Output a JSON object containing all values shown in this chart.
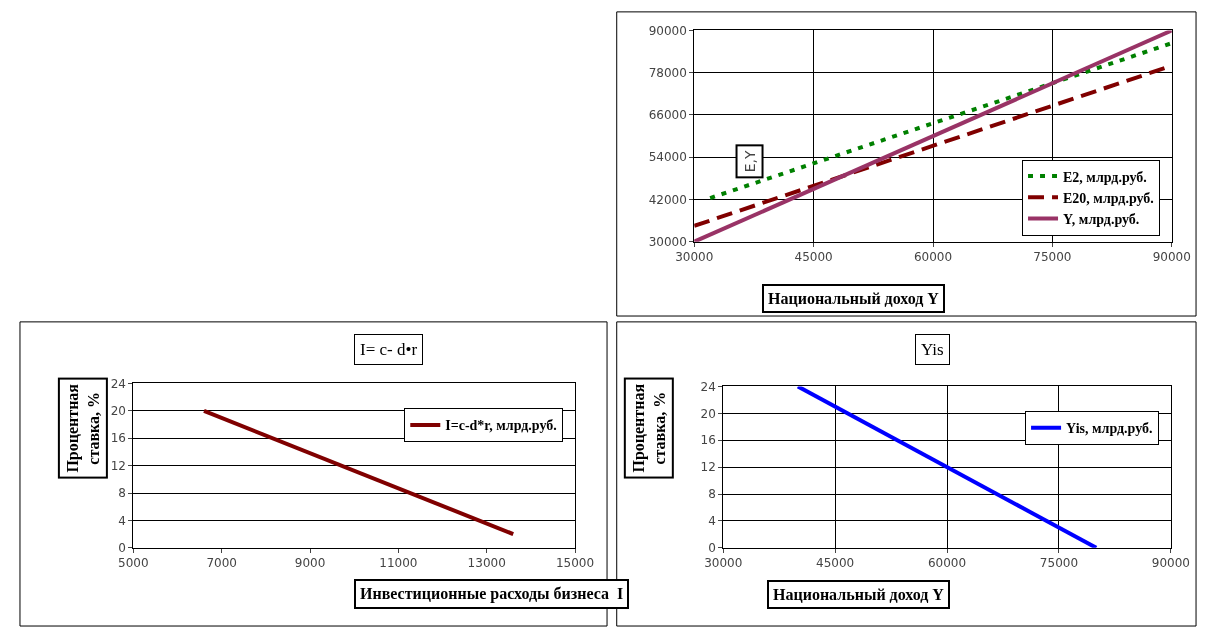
{
  "chart_data": [
    {
      "type": "line",
      "ylabel": "E,Y",
      "xlabel": "Национальный доход Y",
      "xlim": [
        30000,
        90000
      ],
      "xticks": [
        30000,
        45000,
        60000,
        75000,
        90000
      ],
      "ylim": [
        30000,
        90000
      ],
      "yticks": [
        30000,
        42000,
        54000,
        66000,
        78000,
        90000
      ],
      "grid": true,
      "legend": "bottom right",
      "series": [
        {
          "name": "E2, млрд.руб.",
          "color": "#008000",
          "line_style": "dotted",
          "x": [
            32000,
            90000
          ],
          "values": [
            42400,
            86400
          ]
        },
        {
          "name": "E20, млрд.руб.",
          "color": "#800000",
          "line_style": "dashed",
          "x": [
            30000,
            90000
          ],
          "values": [
            34500,
            80000
          ]
        },
        {
          "name": "Y, млрд.руб.",
          "color": "#993366",
          "line_style": "solid",
          "x": [
            30000,
            90000
          ],
          "values": [
            30000,
            90000
          ]
        }
      ]
    },
    {
      "type": "line",
      "title": "I= c- d•r",
      "xlabel": "Инвестиционные расходы бизнеса  I",
      "ylabel": "Процентная ставка, %",
      "xlim": [
        5000,
        15000
      ],
      "xticks": [
        5000,
        7000,
        9000,
        11000,
        13000,
        15000
      ],
      "ylim": [
        0,
        24
      ],
      "yticks": [
        0,
        4,
        8,
        12,
        16,
        20,
        24
      ],
      "grid": "y",
      "legend": "top right",
      "series": [
        {
          "name": "I=c-d*r, млрд.руб.",
          "color": "#800000",
          "line_style": "solid",
          "x": [
            6600,
            13600
          ],
          "values": [
            20,
            2
          ]
        }
      ]
    },
    {
      "type": "line",
      "title": "Yis",
      "xlabel": "Национальный доход Y",
      "ylabel": "Процентная ставка, %",
      "xlim": [
        30000,
        90000
      ],
      "xticks": [
        30000,
        45000,
        60000,
        75000,
        90000
      ],
      "ylim": [
        0,
        24
      ],
      "yticks": [
        0,
        4,
        8,
        12,
        16,
        20,
        24
      ],
      "grid": true,
      "legend": "top right",
      "series": [
        {
          "name": "Yis, млрд.руб.",
          "color": "#0000ff",
          "line_style": "solid",
          "x": [
            40000,
            80000
          ],
          "values": [
            24,
            0
          ]
        }
      ]
    }
  ]
}
